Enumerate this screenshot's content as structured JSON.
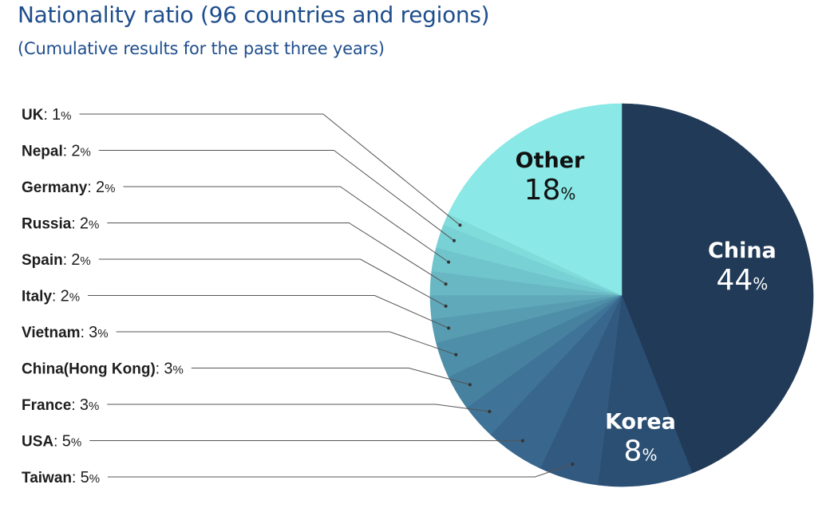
{
  "title": "Nationality ratio (96 countries and regions)",
  "subtitle": "(Cumulative results for the past three years)",
  "chart_data": {
    "type": "pie",
    "title": "Nationality ratio (96 countries and regions)",
    "subtitle": "(Cumulative results for the past three years)",
    "unit": "%",
    "slices": [
      {
        "label": "China",
        "value": 44,
        "color": "#213a57",
        "text_color": "#ffffff",
        "labeled_inside": true
      },
      {
        "label": "Korea",
        "value": 8,
        "color": "#2b4f73",
        "text_color": "#ffffff",
        "labeled_inside": true
      },
      {
        "label": "Taiwan",
        "value": 5,
        "color": "#325a80",
        "labeled_inside": false
      },
      {
        "label": "USA",
        "value": 5,
        "color": "#38668c",
        "labeled_inside": false
      },
      {
        "label": "France",
        "value": 3,
        "color": "#3f7397",
        "labeled_inside": false
      },
      {
        "label": "China(Hong Kong)",
        "value": 3,
        "color": "#46819f",
        "labeled_inside": false
      },
      {
        "label": "Vietnam",
        "value": 3,
        "color": "#4e8ea8",
        "labeled_inside": false
      },
      {
        "label": "Italy",
        "value": 2,
        "color": "#579cb1",
        "labeled_inside": false
      },
      {
        "label": "Spain",
        "value": 2,
        "color": "#5fa9ba",
        "labeled_inside": false
      },
      {
        "label": "Russia",
        "value": 2,
        "color": "#68b7c3",
        "labeled_inside": false
      },
      {
        "label": "Germany",
        "value": 2,
        "color": "#70c4cc",
        "labeled_inside": false
      },
      {
        "label": "Nepal",
        "value": 2,
        "color": "#78d1d4",
        "labeled_inside": false
      },
      {
        "label": "UK",
        "value": 1,
        "color": "#80dcdb",
        "labeled_inside": false
      },
      {
        "label": "Other",
        "value": 18,
        "color": "#8ae8e6",
        "text_color": "#111111",
        "labeled_inside": true
      }
    ],
    "legend_order": [
      "UK",
      "Nepal",
      "Germany",
      "Russia",
      "Spain",
      "Italy",
      "Vietnam",
      "China(Hong Kong)",
      "France",
      "USA",
      "Taiwan"
    ],
    "legend_placement": "left",
    "leader_line_color": "#555555"
  }
}
